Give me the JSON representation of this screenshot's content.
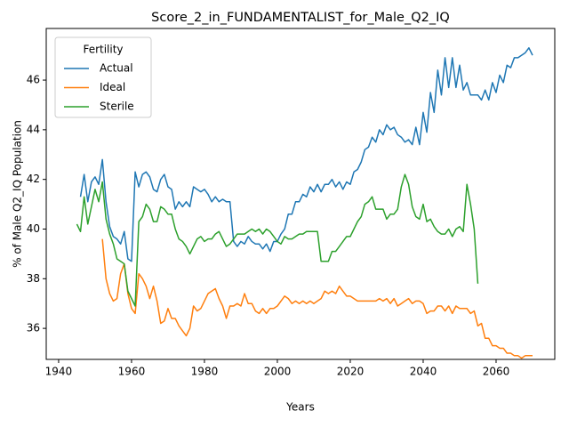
{
  "chart_data": {
    "type": "line",
    "title": "Score_2_in_FUNDAMENTALIST_for_Male_Q2_IQ",
    "xlabel": "Years",
    "ylabel": "% of Male Q2_IQ Population",
    "legend_title": "Fertility",
    "legend": "upper left",
    "grid": false,
    "xlim": [
      1936.6,
      2076.1
    ],
    "ylim": [
      34.75,
      48.08
    ],
    "xticks": [
      1940,
      1960,
      1980,
      2000,
      2020,
      2040,
      2060
    ],
    "yticks": [
      36,
      38,
      40,
      42,
      44,
      46
    ],
    "x": [
      1945,
      1946,
      1947,
      1948,
      1949,
      1950,
      1951,
      1952,
      1953,
      1954,
      1955,
      1956,
      1957,
      1958,
      1959,
      1960,
      1961,
      1962,
      1963,
      1964,
      1965,
      1966,
      1967,
      1968,
      1969,
      1970,
      1971,
      1972,
      1973,
      1974,
      1975,
      1976,
      1977,
      1978,
      1979,
      1980,
      1981,
      1982,
      1983,
      1984,
      1985,
      1986,
      1987,
      1988,
      1989,
      1990,
      1991,
      1992,
      1993,
      1994,
      1995,
      1996,
      1997,
      1998,
      1999,
      2000,
      2001,
      2002,
      2003,
      2004,
      2005,
      2006,
      2007,
      2008,
      2009,
      2010,
      2011,
      2012,
      2013,
      2014,
      2015,
      2016,
      2017,
      2018,
      2019,
      2020,
      2021,
      2022,
      2023,
      2024,
      2025,
      2026,
      2027,
      2028,
      2029,
      2030,
      2031,
      2032,
      2033,
      2034,
      2035,
      2036,
      2037,
      2038,
      2039,
      2040,
      2041,
      2042,
      2043,
      2044,
      2045,
      2046,
      2047,
      2048,
      2049,
      2050,
      2051,
      2052,
      2053,
      2054,
      2055,
      2056,
      2057,
      2058,
      2059,
      2060,
      2061,
      2062,
      2063,
      2064,
      2065,
      2066,
      2067,
      2068,
      2069,
      2070
    ],
    "series": [
      {
        "name": "Actual",
        "color": "#1f77b4",
        "values": [
          null,
          41.3,
          42.2,
          41.1,
          41.9,
          42.1,
          41.8,
          42.8,
          41.1,
          40.1,
          39.7,
          39.6,
          39.4,
          39.9,
          38.8,
          38.7,
          42.3,
          41.7,
          42.2,
          42.3,
          42.1,
          41.6,
          41.5,
          42.0,
          42.2,
          41.7,
          41.6,
          40.8,
          41.1,
          40.9,
          41.1,
          40.9,
          41.7,
          41.6,
          41.5,
          41.6,
          41.4,
          41.1,
          41.3,
          41.1,
          41.2,
          41.1,
          41.1,
          39.5,
          39.3,
          39.5,
          39.4,
          39.7,
          39.5,
          39.4,
          39.4,
          39.2,
          39.4,
          39.1,
          39.5,
          39.5,
          39.8,
          40.0,
          40.6,
          40.6,
          41.1,
          41.1,
          41.4,
          41.3,
          41.7,
          41.5,
          41.8,
          41.5,
          41.8,
          41.8,
          42.0,
          41.7,
          41.9,
          41.6,
          41.9,
          41.8,
          42.3,
          42.4,
          42.7,
          43.2,
          43.3,
          43.7,
          43.5,
          44.0,
          43.8,
          44.2,
          44.0,
          44.1,
          43.8,
          43.7,
          43.5,
          43.6,
          43.4,
          44.1,
          43.4,
          44.7,
          43.9,
          45.5,
          44.7,
          46.4,
          45.4,
          46.9,
          45.7,
          46.9,
          45.7,
          46.6,
          45.6,
          45.9,
          45.4,
          45.4,
          45.4,
          45.2,
          45.6,
          45.2,
          45.9,
          45.5,
          46.2,
          45.9,
          46.6,
          46.5,
          46.9,
          46.9,
          47.0,
          47.1,
          47.3,
          47.0
        ]
      },
      {
        "name": "Ideal",
        "color": "#ff7f0e",
        "values": [
          null,
          null,
          null,
          null,
          null,
          null,
          null,
          39.6,
          38.0,
          37.4,
          37.1,
          37.2,
          38.2,
          38.6,
          37.4,
          36.8,
          36.6,
          38.2,
          38.0,
          37.7,
          37.2,
          37.7,
          37.1,
          36.2,
          36.3,
          36.8,
          36.4,
          36.4,
          36.1,
          35.9,
          35.7,
          36.0,
          36.9,
          36.7,
          36.8,
          37.1,
          37.4,
          37.5,
          37.6,
          37.2,
          36.9,
          36.4,
          36.9,
          36.9,
          37.0,
          36.9,
          37.4,
          37.0,
          37.0,
          36.7,
          36.6,
          36.8,
          36.6,
          36.8,
          36.8,
          36.9,
          37.1,
          37.3,
          37.2,
          37.0,
          37.1,
          37.0,
          37.1,
          37.0,
          37.1,
          37.0,
          37.1,
          37.2,
          37.5,
          37.4,
          37.5,
          37.4,
          37.7,
          37.5,
          37.3,
          37.3,
          37.2,
          37.1,
          37.1,
          37.1,
          37.1,
          37.1,
          37.1,
          37.2,
          37.1,
          37.2,
          37.0,
          37.2,
          36.9,
          37.0,
          37.1,
          37.2,
          37.0,
          37.1,
          37.1,
          37.0,
          36.6,
          36.7,
          36.7,
          36.9,
          36.9,
          36.7,
          36.9,
          36.6,
          36.9,
          36.8,
          36.8,
          36.8,
          36.6,
          36.7,
          36.1,
          36.2,
          35.6,
          35.6,
          35.3,
          35.3,
          35.2,
          35.2,
          35.0,
          35.0,
          34.9,
          34.9,
          34.8,
          34.9,
          34.9,
          34.9
        ]
      },
      {
        "name": "Sterile",
        "color": "#2ca02c",
        "values": [
          40.2,
          39.9,
          41.3,
          40.2,
          40.9,
          41.6,
          41.1,
          41.9,
          40.4,
          39.8,
          39.4,
          38.8,
          38.7,
          38.6,
          37.5,
          37.2,
          36.9,
          40.3,
          40.5,
          41.0,
          40.8,
          40.3,
          40.3,
          40.9,
          40.8,
          40.6,
          40.6,
          40.0,
          39.6,
          39.5,
          39.3,
          39.0,
          39.3,
          39.6,
          39.7,
          39.5,
          39.6,
          39.6,
          39.8,
          39.9,
          39.6,
          39.3,
          39.4,
          39.6,
          39.8,
          39.8,
          39.8,
          39.9,
          40.0,
          39.9,
          40.0,
          39.8,
          40.0,
          39.9,
          39.7,
          39.5,
          39.4,
          39.7,
          39.6,
          39.6,
          39.7,
          39.8,
          39.8,
          39.9,
          39.9,
          39.9,
          39.9,
          38.7,
          38.7,
          38.7,
          39.1,
          39.1,
          39.3,
          39.5,
          39.7,
          39.7,
          40.0,
          40.3,
          40.5,
          41.0,
          41.1,
          41.3,
          40.8,
          40.8,
          40.8,
          40.4,
          40.6,
          40.6,
          40.8,
          41.7,
          42.2,
          41.8,
          40.9,
          40.5,
          40.4,
          41.0,
          40.3,
          40.4,
          40.1,
          39.9,
          39.8,
          39.8,
          40.0,
          39.7,
          40.0,
          40.1,
          39.9,
          41.8,
          41.0,
          40.0,
          37.8,
          null,
          null,
          null,
          null,
          null,
          null,
          null,
          null,
          null,
          null,
          null,
          null,
          null,
          null,
          null
        ]
      }
    ]
  }
}
